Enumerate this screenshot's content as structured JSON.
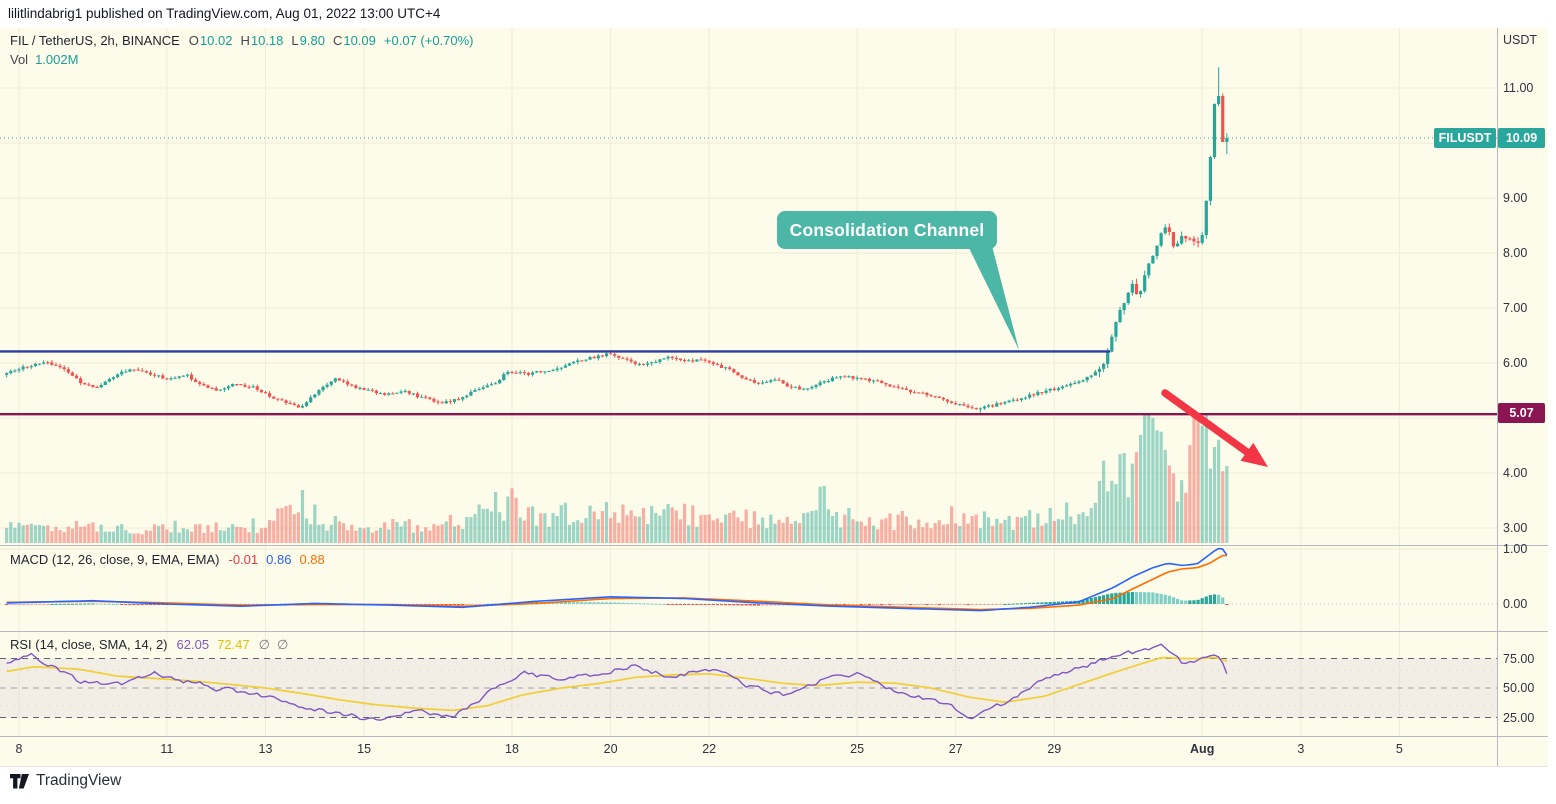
{
  "attribution": "lilitlindabrig1 published on TradingView.com, Aug 01, 2022 13:00 UTC+4",
  "brand": "TradingView",
  "ui": {
    "axis_unit": "USDT",
    "callout_text": "Consolidation Channel",
    "badges": {
      "symbol": "FILUSDT",
      "last": "10.09",
      "support": "5.07"
    },
    "legend_main": [
      {
        "text": "FIL / TetherUS, 2h, BINANCE",
        "color": "#1f2430",
        "gap": 9
      },
      {
        "text": "O",
        "color": "#434651",
        "gap": 1
      },
      {
        "text": "10.02",
        "color": "#16a098",
        "gap": 8
      },
      {
        "text": "H",
        "color": "#434651",
        "gap": 1
      },
      {
        "text": "10.18",
        "color": "#16a098",
        "gap": 8
      },
      {
        "text": "L",
        "color": "#434651",
        "gap": 1
      },
      {
        "text": "9.80",
        "color": "#16a098",
        "gap": 8
      },
      {
        "text": "C",
        "color": "#434651",
        "gap": 1
      },
      {
        "text": "10.09",
        "color": "#16a098",
        "gap": 8
      },
      {
        "text": "+0.07 (+0.70%)",
        "color": "#16a098",
        "gap": 0
      }
    ],
    "legend_vol": [
      {
        "text": "Vol",
        "color": "#434651",
        "gap": 7
      },
      {
        "text": "1.002M",
        "color": "#16a098",
        "gap": 0
      }
    ],
    "legend_macd": [
      {
        "text": "MACD (12, 26, close, 9, EMA, EMA)",
        "color": "#1f2430",
        "gap": 9
      },
      {
        "text": "-0.01",
        "color": "#f23645",
        "gap": 8
      },
      {
        "text": "0.86",
        "color": "#2962ff",
        "gap": 8
      },
      {
        "text": "0.88",
        "color": "#ff6d00",
        "gap": 0
      }
    ],
    "legend_rsi": [
      {
        "text": "RSI (14, close, SMA, 14, 2)",
        "color": "#1f2430",
        "gap": 9
      },
      {
        "text": "62.05",
        "color": "#7e57c2",
        "gap": 8
      },
      {
        "text": "72.47",
        "color": "#e2bf07",
        "gap": 9
      },
      {
        "text": "∅",
        "color": "#787b86",
        "gap": 7
      },
      {
        "text": "∅",
        "color": "#787b86",
        "gap": 0
      }
    ]
  },
  "colors": {
    "bg_chart": "#fdfbe9",
    "grid": "#f0edd9",
    "separator": "#b6b9c3",
    "up": "#26a69a",
    "down": "#ef5350",
    "vol_up": "rgba(38,166,154,0.45)",
    "vol_down": "rgba(239,83,80,0.45)",
    "macd_line": "#2962ff",
    "signal_line": "#ff6d00",
    "hist_grow_above": "#26a69a",
    "hist_fall_above": "#7fcfc6",
    "hist_fall_below": "#ef5350",
    "hist_grow_below": "#f5a8a4",
    "rsi_line": "#7e57c2",
    "rsi_sma": "#f0d03c",
    "rsi_band": "rgba(126,87,194,0.08)",
    "rsi_dash_outer": "#60646e",
    "rsi_dash_mid": "#9b9eab",
    "resistance_blue": "#2c3e9f",
    "support_maroon": "#8b1552",
    "last_price_dotted": "#2aa79c",
    "arrow_red": "#f23645",
    "callout_teal": "#4cb6a7"
  },
  "chart_data": {
    "type": "candlestick",
    "symbol": "FIL / TetherUS",
    "exchange": "BINANCE",
    "interval": "2h",
    "title": "FIL / TetherUS, 2h, BINANCE",
    "last": {
      "open": 10.02,
      "high": 10.18,
      "low": 9.8,
      "close": 10.09,
      "change": "+0.07 (+0.70%)",
      "volume": "1.002M"
    },
    "price_axis_ticks": [
      11,
      9,
      8,
      7,
      6,
      4,
      3
    ],
    "time_ticks": [
      {
        "label": "8",
        "day": 0
      },
      {
        "label": "11",
        "day": 3
      },
      {
        "label": "13",
        "day": 5
      },
      {
        "label": "15",
        "day": 7
      },
      {
        "label": "18",
        "day": 10
      },
      {
        "label": "20",
        "day": 12
      },
      {
        "label": "22",
        "day": 14
      },
      {
        "label": "25",
        "day": 17
      },
      {
        "label": "27",
        "day": 19
      },
      {
        "label": "29",
        "day": 21
      },
      {
        "label": "Aug",
        "day": 24
      },
      {
        "label": "3",
        "day": 26
      },
      {
        "label": "5",
        "day": 28
      }
    ],
    "levels": {
      "resistance": 6.21,
      "support": 5.07,
      "last_price": 10.09,
      "peak_high": 11.38
    },
    "price_anchors": [
      [
        -0.25,
        5.82
      ],
      [
        0.2,
        5.95
      ],
      [
        0.5,
        6.03
      ],
      [
        0.9,
        5.9
      ],
      [
        1.3,
        5.62
      ],
      [
        1.6,
        5.55
      ],
      [
        2.0,
        5.8
      ],
      [
        2.3,
        5.88
      ],
      [
        2.7,
        5.8
      ],
      [
        3.0,
        5.7
      ],
      [
        3.4,
        5.78
      ],
      [
        3.7,
        5.6
      ],
      [
        4.0,
        5.5
      ],
      [
        4.4,
        5.62
      ],
      [
        4.8,
        5.55
      ],
      [
        5.2,
        5.35
      ],
      [
        5.5,
        5.25
      ],
      [
        5.7,
        5.18
      ],
      [
        6.0,
        5.45
      ],
      [
        6.4,
        5.72
      ],
      [
        6.7,
        5.6
      ],
      [
        7.0,
        5.52
      ],
      [
        7.4,
        5.42
      ],
      [
        7.8,
        5.5
      ],
      [
        8.2,
        5.36
      ],
      [
        8.6,
        5.28
      ],
      [
        8.9,
        5.34
      ],
      [
        9.3,
        5.52
      ],
      [
        9.7,
        5.65
      ],
      [
        9.9,
        5.85
      ],
      [
        10.3,
        5.8
      ],
      [
        10.7,
        5.86
      ],
      [
        11.0,
        5.93
      ],
      [
        11.4,
        6.05
      ],
      [
        11.8,
        6.13
      ],
      [
        12.0,
        6.18
      ],
      [
        12.3,
        6.05
      ],
      [
        12.6,
        5.98
      ],
      [
        12.9,
        6.03
      ],
      [
        13.2,
        6.1
      ],
      [
        13.5,
        6.02
      ],
      [
        13.8,
        6.06
      ],
      [
        14.1,
        5.96
      ],
      [
        14.4,
        5.9
      ],
      [
        14.7,
        5.72
      ],
      [
        15.0,
        5.62
      ],
      [
        15.3,
        5.72
      ],
      [
        15.6,
        5.58
      ],
      [
        15.9,
        5.52
      ],
      [
        16.2,
        5.62
      ],
      [
        16.5,
        5.72
      ],
      [
        16.8,
        5.75
      ],
      [
        17.1,
        5.7
      ],
      [
        17.4,
        5.68
      ],
      [
        17.7,
        5.56
      ],
      [
        18.0,
        5.5
      ],
      [
        18.3,
        5.47
      ],
      [
        18.6,
        5.38
      ],
      [
        18.9,
        5.28
      ],
      [
        19.2,
        5.22
      ],
      [
        19.5,
        5.17
      ],
      [
        19.8,
        5.24
      ],
      [
        20.1,
        5.31
      ],
      [
        20.4,
        5.38
      ],
      [
        20.7,
        5.46
      ],
      [
        21.0,
        5.53
      ],
      [
        21.3,
        5.6
      ],
      [
        21.6,
        5.7
      ],
      [
        21.9,
        5.86
      ],
      [
        22.0,
        5.97
      ],
      [
        22.15,
        6.45
      ],
      [
        22.3,
        6.85
      ],
      [
        22.45,
        7.18
      ],
      [
        22.6,
        7.42
      ],
      [
        22.7,
        7.22
      ],
      [
        22.85,
        7.62
      ],
      [
        23.0,
        7.98
      ],
      [
        23.15,
        8.32
      ],
      [
        23.3,
        8.52
      ],
      [
        23.45,
        8.02
      ],
      [
        23.55,
        8.32
      ],
      [
        23.7,
        8.26
      ],
      [
        23.85,
        8.16
      ],
      [
        24.0,
        8.32
      ],
      [
        24.05,
        8.62
      ],
      [
        24.12,
        9.3
      ],
      [
        24.18,
        9.92
      ],
      [
        24.24,
        10.6
      ],
      [
        24.3,
        11.2
      ],
      [
        24.36,
        10.5
      ],
      [
        24.42,
        10.2
      ],
      [
        24.47,
        10.42
      ],
      [
        24.52,
        10.09
      ]
    ],
    "volume_anchors": [
      [
        -0.25,
        0.28
      ],
      [
        1,
        0.3
      ],
      [
        2,
        0.26
      ],
      [
        3,
        0.3
      ],
      [
        4,
        0.27
      ],
      [
        5,
        0.35
      ],
      [
        5.7,
        0.85
      ],
      [
        6.1,
        0.4
      ],
      [
        7,
        0.3
      ],
      [
        8,
        0.34
      ],
      [
        9,
        0.4
      ],
      [
        9.9,
        0.8
      ],
      [
        10.3,
        0.5
      ],
      [
        11,
        0.55
      ],
      [
        11.5,
        0.48
      ],
      [
        12,
        0.6
      ],
      [
        12.5,
        0.5
      ],
      [
        13,
        0.55
      ],
      [
        13.4,
        0.62
      ],
      [
        14,
        0.4
      ],
      [
        14.7,
        0.5
      ],
      [
        15,
        0.45
      ],
      [
        15.5,
        0.4
      ],
      [
        16,
        0.5
      ],
      [
        16.3,
        0.9
      ],
      [
        16.6,
        0.5
      ],
      [
        17,
        0.45
      ],
      [
        17.5,
        0.4
      ],
      [
        18,
        0.44
      ],
      [
        18.5,
        0.4
      ],
      [
        19,
        0.5
      ],
      [
        19.5,
        0.44
      ],
      [
        20,
        0.4
      ],
      [
        20.5,
        0.45
      ],
      [
        21,
        0.5
      ],
      [
        21.5,
        0.6
      ],
      [
        21.9,
        0.85
      ],
      [
        22.1,
        1.5
      ],
      [
        22.3,
        1.3
      ],
      [
        22.5,
        1.45
      ],
      [
        22.7,
        1.2
      ],
      [
        22.9,
        2.4
      ],
      [
        23.1,
        1.8
      ],
      [
        23.25,
        1.25
      ],
      [
        23.45,
        0.95
      ],
      [
        23.6,
        1.05
      ],
      [
        23.8,
        2.2
      ],
      [
        23.95,
        2.25
      ],
      [
        24.1,
        1.7
      ],
      [
        24.3,
        1.5
      ],
      [
        24.45,
        1.3
      ],
      [
        24.52,
        1.0
      ]
    ],
    "macd": {
      "params": "12, 26, close, 9, EMA, EMA",
      "hist": -0.01,
      "macd": 0.86,
      "signal": 0.88,
      "axis_ticks": [
        1,
        0
      ],
      "anchors": [
        [
          -0.25,
          0.02,
          0.03
        ],
        [
          1.5,
          0.06,
          0.05
        ],
        [
          3,
          0.0,
          0.02
        ],
        [
          4.5,
          -0.04,
          -0.02
        ],
        [
          6,
          0.01,
          -0.01
        ],
        [
          7.5,
          -0.02,
          -0.01
        ],
        [
          9,
          -0.06,
          -0.04
        ],
        [
          10.5,
          0.05,
          0.01
        ],
        [
          12,
          0.13,
          0.1
        ],
        [
          13.5,
          0.1,
          0.11
        ],
        [
          15,
          0.02,
          0.05
        ],
        [
          16.5,
          -0.04,
          -0.02
        ],
        [
          18,
          -0.08,
          -0.06
        ],
        [
          19.5,
          -0.12,
          -0.1
        ],
        [
          20.5,
          -0.06,
          -0.08
        ],
        [
          21.5,
          0.04,
          -0.02
        ],
        [
          22.2,
          0.3,
          0.1
        ],
        [
          22.6,
          0.5,
          0.28
        ],
        [
          23.0,
          0.66,
          0.45
        ],
        [
          23.3,
          0.74,
          0.58
        ],
        [
          23.6,
          0.7,
          0.64
        ],
        [
          23.9,
          0.73,
          0.66
        ],
        [
          24.15,
          0.9,
          0.74
        ],
        [
          24.3,
          1.0,
          0.82
        ],
        [
          24.4,
          1.02,
          0.88
        ],
        [
          24.52,
          0.86,
          0.88
        ]
      ]
    },
    "rsi": {
      "params": "14, close, SMA, 14, 2",
      "rsi": 62.05,
      "sma": 72.47,
      "axis_ticks": [
        75,
        50,
        25
      ],
      "band_levels": [
        75,
        50,
        25
      ],
      "anchors": [
        [
          -0.25,
          72,
          64
        ],
        [
          0.3,
          78,
          68
        ],
        [
          1.2,
          55,
          66
        ],
        [
          2,
          52,
          60
        ],
        [
          2.8,
          62,
          58
        ],
        [
          3.5,
          55,
          56
        ],
        [
          4.3,
          48,
          53
        ],
        [
          5,
          42,
          50
        ],
        [
          5.8,
          34,
          45
        ],
        [
          6.5,
          28,
          40
        ],
        [
          7.2,
          23,
          36
        ],
        [
          8,
          31,
          33
        ],
        [
          8.8,
          26,
          31
        ],
        [
          9.5,
          46,
          35
        ],
        [
          10.2,
          63,
          44
        ],
        [
          11,
          56,
          50
        ],
        [
          11.8,
          63,
          54
        ],
        [
          12.5,
          69,
          59
        ],
        [
          13.2,
          60,
          61
        ],
        [
          14,
          66,
          62
        ],
        [
          14.8,
          52,
          58
        ],
        [
          15.5,
          45,
          54
        ],
        [
          16.2,
          56,
          52
        ],
        [
          17,
          63,
          55
        ],
        [
          17.8,
          48,
          54
        ],
        [
          18.5,
          40,
          50
        ],
        [
          19.3,
          27,
          42
        ],
        [
          20,
          36,
          38
        ],
        [
          20.8,
          56,
          43
        ],
        [
          21.5,
          68,
          53
        ],
        [
          22.2,
          76,
          63
        ],
        [
          22.8,
          81,
          71
        ],
        [
          23.2,
          86,
          76
        ],
        [
          23.6,
          70,
          75
        ],
        [
          24,
          73,
          75
        ],
        [
          24.2,
          80,
          76
        ],
        [
          24.35,
          74,
          75
        ],
        [
          24.52,
          62.05,
          72.47
        ]
      ]
    }
  }
}
